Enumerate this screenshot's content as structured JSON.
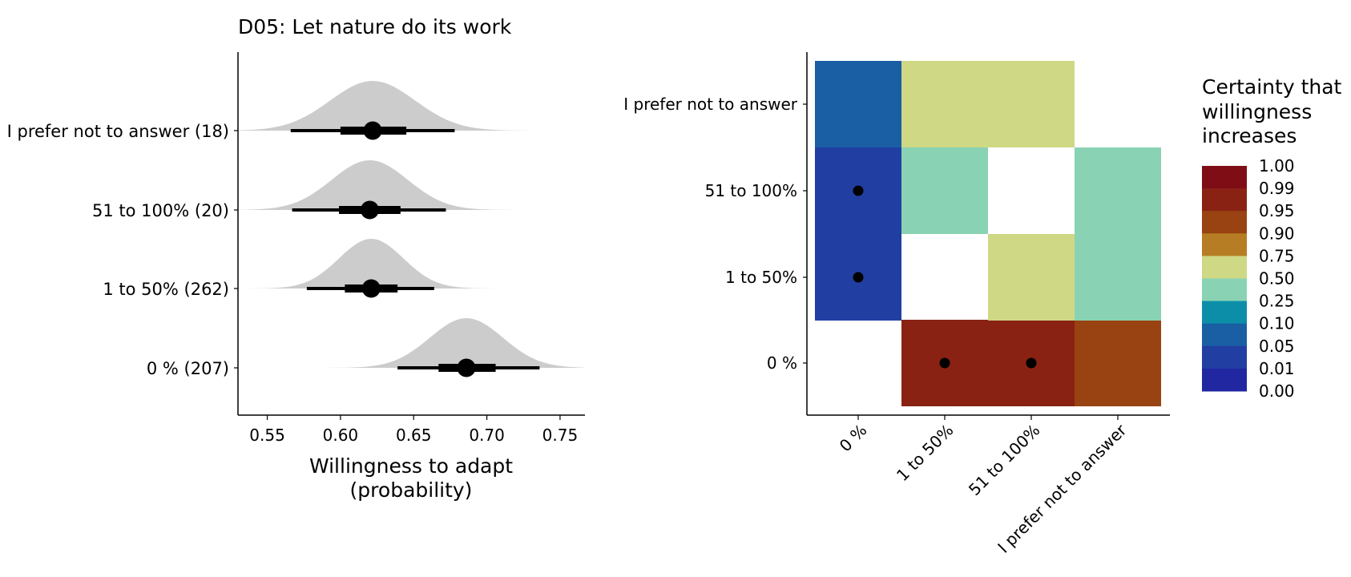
{
  "chart_data": [
    {
      "type": "halfeye",
      "title": "D05: Let nature do its work",
      "xlabel_line1": "Willingness to adapt",
      "xlabel_line2": "(probability)",
      "ylabel": "",
      "xlim": [
        0.53,
        0.767
      ],
      "xticks": [
        0.55,
        0.6,
        0.65,
        0.7,
        0.75
      ],
      "xtick_labels": [
        "0.55",
        "0.60",
        "0.65",
        "0.70",
        "0.75"
      ],
      "categories": [
        "I prefer not to answer (18)",
        "51 to 100% (20)",
        "1 to 50% (262)",
        "0 % (207)"
      ],
      "median": [
        0.622,
        0.62,
        0.621,
        0.686
      ],
      "inner_interval": [
        [
          0.6,
          0.645
        ],
        [
          0.599,
          0.641
        ],
        [
          0.603,
          0.639
        ],
        [
          0.667,
          0.706
        ]
      ],
      "outer_interval": [
        [
          0.566,
          0.678
        ],
        [
          0.567,
          0.672
        ],
        [
          0.577,
          0.664
        ],
        [
          0.639,
          0.736
        ]
      ],
      "density_sd": [
        0.029,
        0.026,
        0.022,
        0.025
      ],
      "density_range": [
        [
          0.53,
          0.73
        ],
        [
          0.53,
          0.72
        ],
        [
          0.53,
          0.713
        ],
        [
          0.585,
          0.767
        ]
      ],
      "density_color": "#cccccc",
      "point_color": "#000000"
    },
    {
      "type": "heatmap",
      "title": "",
      "x_categories": [
        "0 %",
        "1 to 50%",
        "51 to 100%",
        "I prefer not to answer"
      ],
      "y_categories": [
        "0 %",
        "1 to 50%",
        "51 to 100%",
        "I prefer not to answer"
      ],
      "cells": [
        {
          "x": "1 to 50%",
          "y": "0 %",
          "bin": "0.95 - 0.99",
          "dot": true
        },
        {
          "x": "51 to 100%",
          "y": "0 %",
          "bin": "0.95 - 0.99",
          "dot": true
        },
        {
          "x": "I prefer not to answer",
          "y": "0 %",
          "bin": "0.90 - 0.95",
          "dot": false
        },
        {
          "x": "0 %",
          "y": "1 to 50%",
          "bin": "0.01 - 0.05",
          "dot": true
        },
        {
          "x": "51 to 100%",
          "y": "1 to 50%",
          "bin": "0.50 - 0.75",
          "dot": false
        },
        {
          "x": "I prefer not to answer",
          "y": "1 to 50%",
          "bin": "0.25 - 0.50",
          "dot": false
        },
        {
          "x": "0 %",
          "y": "51 to 100%",
          "bin": "0.01 - 0.05",
          "dot": true
        },
        {
          "x": "1 to 50%",
          "y": "51 to 100%",
          "bin": "0.25 - 0.50",
          "dot": false
        },
        {
          "x": "I prefer not to answer",
          "y": "51 to 100%",
          "bin": "0.25 - 0.50",
          "dot": false
        },
        {
          "x": "0 %",
          "y": "I prefer not to answer",
          "bin": "0.05 - 0.10",
          "dot": false
        },
        {
          "x": "1 to 50%",
          "y": "I prefer not to answer",
          "bin": "0.50 - 0.75",
          "dot": false
        },
        {
          "x": "51 to 100%",
          "y": "I prefer not to answer",
          "bin": "0.50 - 0.75",
          "dot": false
        }
      ],
      "legend": {
        "title_lines": [
          "Certainty that",
          "willingness",
          "increases"
        ],
        "placement": "right",
        "labels": [
          "1.00",
          "0.99",
          "0.95",
          "0.90",
          "0.75",
          "0.50",
          "0.25",
          "0.10",
          "0.05",
          "0.01",
          "0.00"
        ],
        "bins": [
          {
            "range": "0.99 - 1.00",
            "color": "#7f0d16"
          },
          {
            "range": "0.95 - 0.99",
            "color": "#892213"
          },
          {
            "range": "0.90 - 0.95",
            "color": "#984311"
          },
          {
            "range": "0.75 - 0.90",
            "color": "#b77d25"
          },
          {
            "range": "0.50 - 0.75",
            "color": "#cfd885"
          },
          {
            "range": "0.25 - 0.50",
            "color": "#89d3b4"
          },
          {
            "range": "0.10 - 0.25",
            "color": "#0c8ea9"
          },
          {
            "range": "0.05 - 0.10",
            "color": "#1a5ea4"
          },
          {
            "range": "0.01 - 0.05",
            "color": "#213ea2"
          },
          {
            "range": "0.00 - 0.01",
            "color": "#2027a1"
          }
        ]
      }
    }
  ]
}
